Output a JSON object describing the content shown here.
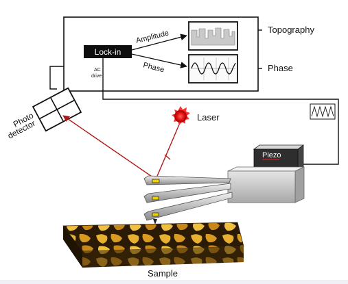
{
  "labels": {
    "lockin": "Lock-in",
    "amplitude": "Amplitude",
    "phase_arrow": "Phase",
    "topography": "Topography",
    "phase_out": "Phase",
    "ac_line1": "AC",
    "ac_line2": "drive",
    "photo_line1": "Photo",
    "photo_line2": "detector",
    "laser": "Laser",
    "piezo": "Piezo",
    "sample": "Sample"
  },
  "colors": {
    "laser_beam": "#b01818",
    "laser_spot": "#e01010",
    "piezo_accent": "#d02020",
    "tip_marker": "#f0d000",
    "sample_dark": "#2a1a06",
    "sample_light": "#e8b030",
    "footer_band": "#eef0f3"
  }
}
